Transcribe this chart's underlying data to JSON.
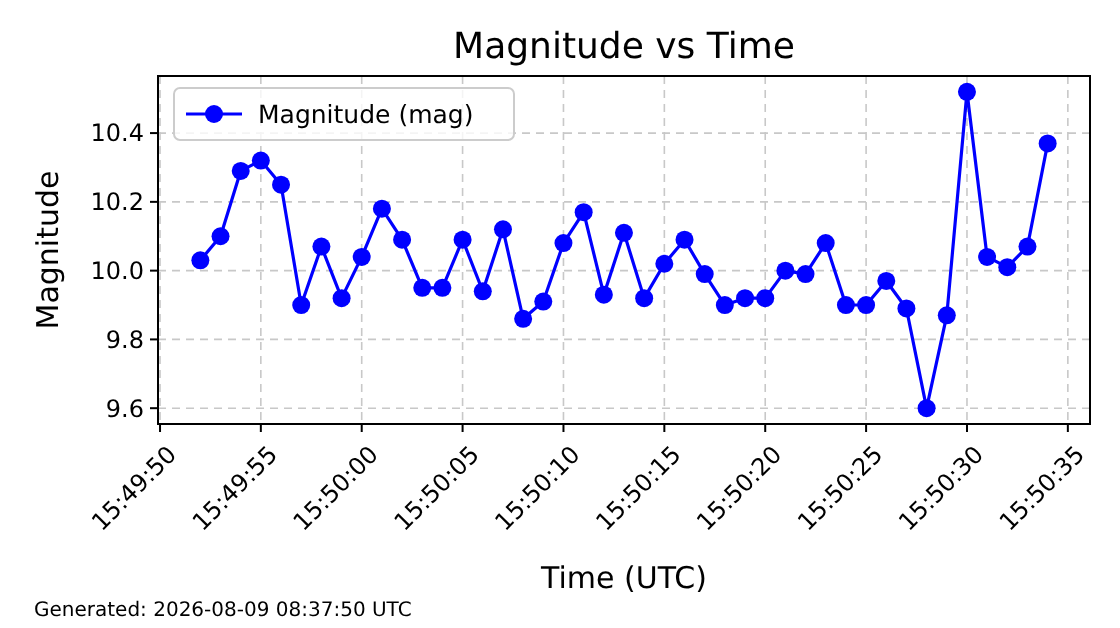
{
  "chart_data": {
    "type": "line",
    "title": "Magnitude vs Time",
    "xlabel": "Time (UTC)",
    "ylabel": "Magnitude",
    "annotations": [
      "Generated: 2026-08-09 08:37:50 UTC"
    ],
    "x": [
      15.831111,
      15.831389,
      15.831667,
      15.831944,
      15.832222,
      15.8325,
      15.832778,
      15.833056,
      15.833333,
      15.833611,
      15.833889,
      15.834167,
      15.834444,
      15.834722,
      15.835,
      15.835278,
      15.835556,
      15.835833,
      15.836111,
      15.836389,
      15.836667,
      15.836944,
      15.837222,
      15.8375,
      15.837778,
      15.838056,
      15.838333,
      15.838611,
      15.838889,
      15.839167,
      15.839444,
      15.839722,
      15.84,
      15.840278,
      15.840556,
      15.840833,
      15.841111,
      15.841389,
      15.841667,
      15.841944,
      15.842222,
      15.8425,
      15.842778
    ],
    "series": [
      {
        "name": "Magnitude (mag)",
        "color": "#0000ff",
        "values": [
          10.03,
          10.1,
          10.29,
          10.32,
          10.25,
          9.9,
          10.07,
          9.92,
          10.04,
          10.18,
          10.09,
          9.95,
          9.95,
          10.09,
          9.94,
          10.12,
          9.86,
          9.91,
          10.08,
          10.17,
          9.93,
          10.11,
          9.92,
          10.02,
          10.09,
          9.99,
          9.9,
          9.92,
          9.92,
          10,
          9.99,
          10.08,
          9.9,
          9.9,
          9.97,
          9.89,
          9.6,
          9.87,
          10.52,
          10.04,
          10.01,
          10.07,
          10.37
        ]
      }
    ],
    "xlim": [
      15.830528,
      15.843361
    ],
    "ylim": [
      9.554,
      10.566
    ],
    "xticks": [
      {
        "value": 15.830556,
        "label": "15:49:50"
      },
      {
        "value": 15.831944,
        "label": "15:49:55"
      },
      {
        "value": 15.833333,
        "label": "15:50:00"
      },
      {
        "value": 15.834722,
        "label": "15:50:05"
      },
      {
        "value": 15.836111,
        "label": "15:50:10"
      },
      {
        "value": 15.8375,
        "label": "15:50:15"
      },
      {
        "value": 15.838889,
        "label": "15:50:20"
      },
      {
        "value": 15.840278,
        "label": "15:50:25"
      },
      {
        "value": 15.841667,
        "label": "15:50:30"
      },
      {
        "value": 15.843056,
        "label": "15:50:35"
      }
    ],
    "yticks": [
      {
        "value": 9.6,
        "label": "9.6"
      },
      {
        "value": 9.8,
        "label": "9.8"
      },
      {
        "value": 10,
        "label": "10.0"
      },
      {
        "value": 10.2,
        "label": "10.2"
      },
      {
        "value": 10.4,
        "label": "10.4"
      }
    ],
    "grid": true,
    "legend": "top left",
    "marker": "circle",
    "line_style": "solid"
  }
}
